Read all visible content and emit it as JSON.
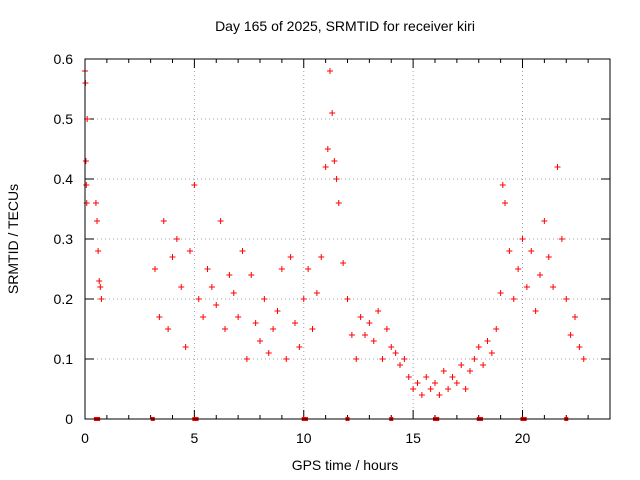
{
  "chart_data": {
    "type": "scatter",
    "title": "Day 165 of 2025, SRMTID for receiver kiri",
    "xlabel": "GPS time / hours",
    "ylabel": "SRMTID / TECUs",
    "xlim": [
      0,
      24
    ],
    "ylim": [
      0,
      0.6
    ],
    "xticks": [
      0,
      5,
      10,
      15,
      20
    ],
    "xtick_labels": [
      "0",
      "5",
      "10",
      "15",
      "20"
    ],
    "yticks": [
      0,
      0.1,
      0.2,
      0.3,
      0.4,
      0.5,
      0.6
    ],
    "ytick_labels": [
      "0",
      "0.1",
      "0.2",
      "0.3",
      "0.4",
      "0.5",
      "0.6"
    ],
    "grid": true,
    "marker": "+",
    "color": "#ff0000",
    "series": [
      {
        "name": "SRMTID",
        "x": [
          0.0,
          0.02,
          0.04,
          0.06,
          0.08,
          0.1,
          0.5,
          0.55,
          0.6,
          0.65,
          0.7,
          0.75,
          3.2,
          3.4,
          3.6,
          3.8,
          4.0,
          4.2,
          4.4,
          4.6,
          4.8,
          5.0,
          5.2,
          5.4,
          5.6,
          5.8,
          6.0,
          6.2,
          6.4,
          6.6,
          6.8,
          7.0,
          7.2,
          7.4,
          7.6,
          7.8,
          8.0,
          8.2,
          8.4,
          8.6,
          8.8,
          9.0,
          9.2,
          9.4,
          9.6,
          9.8,
          10.0,
          10.2,
          10.4,
          10.6,
          10.8,
          11.0,
          11.1,
          11.2,
          11.3,
          11.4,
          11.5,
          11.6,
          11.8,
          12.0,
          12.2,
          12.4,
          12.6,
          12.8,
          13.0,
          13.2,
          13.4,
          13.6,
          13.8,
          14.0,
          14.2,
          14.4,
          14.6,
          14.8,
          15.0,
          15.2,
          15.4,
          15.6,
          15.8,
          16.0,
          16.2,
          16.4,
          16.6,
          16.8,
          17.0,
          17.2,
          17.4,
          17.6,
          17.8,
          18.0,
          18.2,
          18.4,
          18.6,
          18.8,
          19.0,
          19.1,
          19.2,
          19.4,
          19.6,
          19.8,
          20.0,
          20.2,
          20.4,
          20.6,
          20.8,
          21.0,
          21.2,
          21.4,
          21.6,
          21.8,
          22.0,
          22.2,
          22.4,
          22.6,
          22.8
        ],
        "y": [
          0.58,
          0.56,
          0.43,
          0.39,
          0.36,
          0.5,
          0.36,
          0.33,
          0.28,
          0.23,
          0.22,
          0.2,
          0.25,
          0.17,
          0.33,
          0.15,
          0.27,
          0.3,
          0.22,
          0.12,
          0.28,
          0.39,
          0.2,
          0.17,
          0.25,
          0.22,
          0.19,
          0.33,
          0.15,
          0.24,
          0.21,
          0.17,
          0.28,
          0.1,
          0.24,
          0.16,
          0.13,
          0.2,
          0.11,
          0.15,
          0.18,
          0.25,
          0.1,
          0.27,
          0.16,
          0.12,
          0.2,
          0.25,
          0.15,
          0.21,
          0.27,
          0.42,
          0.45,
          0.58,
          0.51,
          0.43,
          0.4,
          0.36,
          0.26,
          0.2,
          0.14,
          0.1,
          0.17,
          0.14,
          0.16,
          0.13,
          0.18,
          0.1,
          0.15,
          0.12,
          0.11,
          0.09,
          0.1,
          0.07,
          0.05,
          0.06,
          0.04,
          0.07,
          0.05,
          0.06,
          0.04,
          0.08,
          0.05,
          0.07,
          0.06,
          0.09,
          0.05,
          0.08,
          0.1,
          0.12,
          0.09,
          0.13,
          0.11,
          0.15,
          0.21,
          0.39,
          0.36,
          0.28,
          0.2,
          0.25,
          0.3,
          0.22,
          0.28,
          0.18,
          0.24,
          0.33,
          0.27,
          0.22,
          0.42,
          0.3,
          0.2,
          0.14,
          0.17,
          0.12,
          0.1
        ]
      }
    ],
    "gap_markers_x": [
      0.5,
      0.6,
      3.1,
      5.0,
      5.1,
      10.0,
      10.1,
      12.0,
      14.0,
      16.0,
      16.1,
      18.0,
      18.1,
      20.0,
      20.1,
      22.0
    ]
  }
}
